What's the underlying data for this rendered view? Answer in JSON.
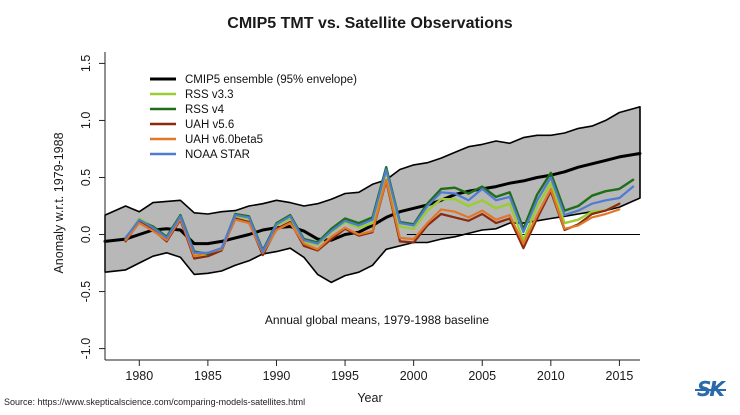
{
  "chart_data": {
    "type": "line",
    "title": "CMIP5 TMT vs. Satellite Observations",
    "xlabel": "Year",
    "ylabel": "Anomaly w.r.t. 1979-1988",
    "xlim": [
      1977.5,
      2016.5
    ],
    "ylim": [
      -1.1,
      1.6
    ],
    "xticks": [
      1980,
      1985,
      1990,
      1995,
      2000,
      2005,
      2010,
      2015
    ],
    "yticks": [
      -1.0,
      -0.5,
      0.0,
      0.5,
      1.0,
      1.5
    ],
    "ytick_labels": [
      "-1.0",
      "-0.5",
      "0.0",
      "0.5",
      "1.0",
      "1.5"
    ],
    "annotation": "Annual global means, 1979-1988 baseline",
    "legend_position": "top-left",
    "envelope": {
      "name": "CMIP5 ensemble (95% envelope)",
      "color": "#b8b8b8",
      "x": [
        1977.5,
        1979,
        1980,
        1981,
        1982,
        1983,
        1984,
        1985,
        1986,
        1987,
        1988,
        1989,
        1990,
        1991,
        1992,
        1993,
        1994,
        1995,
        1996,
        1997,
        1998,
        1999,
        2000,
        2001,
        2002,
        2003,
        2004,
        2005,
        2006,
        2007,
        2008,
        2009,
        2010,
        2011,
        2012,
        2013,
        2014,
        2015,
        2016.5
      ],
      "upper": [
        0.17,
        0.25,
        0.2,
        0.28,
        0.29,
        0.3,
        0.19,
        0.18,
        0.2,
        0.21,
        0.25,
        0.27,
        0.3,
        0.28,
        0.25,
        0.27,
        0.31,
        0.36,
        0.37,
        0.44,
        0.48,
        0.57,
        0.61,
        0.63,
        0.67,
        0.72,
        0.77,
        0.79,
        0.82,
        0.8,
        0.85,
        0.87,
        0.87,
        0.89,
        0.93,
        0.95,
        1.0,
        1.07,
        1.12
      ],
      "lower": [
        -0.33,
        -0.31,
        -0.25,
        -0.19,
        -0.16,
        -0.2,
        -0.35,
        -0.34,
        -0.32,
        -0.27,
        -0.23,
        -0.17,
        -0.15,
        -0.12,
        -0.2,
        -0.35,
        -0.42,
        -0.36,
        -0.33,
        -0.27,
        -0.13,
        -0.1,
        -0.07,
        -0.07,
        -0.04,
        -0.02,
        0.01,
        0.04,
        0.05,
        0.1,
        0.1,
        0.12,
        0.14,
        0.16,
        0.18,
        0.2,
        0.21,
        0.24,
        0.32
      ]
    },
    "series": [
      {
        "name": "CMIP5 ensemble (95% envelope)",
        "color": "#000000",
        "x": [
          1977.5,
          1979,
          1980,
          1981,
          1982,
          1983,
          1984,
          1985,
          1986,
          1987,
          1988,
          1989,
          1990,
          1991,
          1992,
          1993,
          1994,
          1995,
          1996,
          1997,
          1998,
          1999,
          2000,
          2001,
          2002,
          2003,
          2004,
          2005,
          2006,
          2007,
          2008,
          2009,
          2010,
          2011,
          2012,
          2013,
          2014,
          2015,
          2016.5
        ],
        "values": [
          -0.06,
          -0.04,
          0.0,
          0.04,
          0.05,
          0.04,
          -0.08,
          -0.08,
          -0.06,
          -0.03,
          0.0,
          0.04,
          0.06,
          0.07,
          0.03,
          -0.04,
          -0.05,
          0.0,
          0.02,
          0.08,
          0.15,
          0.2,
          0.23,
          0.26,
          0.3,
          0.35,
          0.38,
          0.4,
          0.42,
          0.45,
          0.47,
          0.5,
          0.52,
          0.55,
          0.59,
          0.62,
          0.65,
          0.68,
          0.71
        ]
      },
      {
        "name": "RSS v3.3",
        "color": "#9acd32",
        "x": [
          1979,
          1980,
          1981,
          1982,
          1983,
          1984,
          1985,
          1986,
          1987,
          1988,
          1989,
          1990,
          1991,
          1992,
          1993,
          1994,
          1995,
          1996,
          1997,
          1998,
          1999,
          2000,
          2001,
          2002,
          2003,
          2004,
          2005,
          2006,
          2007,
          2008,
          2009,
          2010,
          2011,
          2012,
          2013,
          2014,
          2015
        ],
        "values": [
          -0.04,
          0.14,
          0.07,
          -0.04,
          0.15,
          -0.18,
          -0.18,
          -0.14,
          0.16,
          0.14,
          -0.16,
          0.08,
          0.14,
          -0.06,
          -0.09,
          0.02,
          0.11,
          0.06,
          0.1,
          0.55,
          0.07,
          0.05,
          0.21,
          0.31,
          0.31,
          0.25,
          0.3,
          0.23,
          0.27,
          -0.05,
          0.25,
          0.45,
          0.1,
          0.13,
          0.2,
          0.21,
          0.27
        ]
      },
      {
        "name": "RSS v4",
        "color": "#1f6e1a",
        "x": [
          1979,
          1980,
          1981,
          1982,
          1983,
          1984,
          1985,
          1986,
          1987,
          1988,
          1989,
          1990,
          1991,
          1992,
          1993,
          1994,
          1995,
          1996,
          1997,
          1998,
          1999,
          2000,
          2001,
          2002,
          2003,
          2004,
          2005,
          2006,
          2007,
          2008,
          2009,
          2010,
          2011,
          2012,
          2013,
          2014,
          2015,
          2016
        ],
        "values": [
          -0.03,
          0.12,
          0.07,
          -0.02,
          0.17,
          -0.15,
          -0.17,
          -0.13,
          0.18,
          0.16,
          -0.14,
          0.1,
          0.17,
          -0.04,
          -0.07,
          0.05,
          0.14,
          0.1,
          0.15,
          0.59,
          0.11,
          0.09,
          0.27,
          0.4,
          0.41,
          0.36,
          0.42,
          0.33,
          0.37,
          0.05,
          0.35,
          0.54,
          0.21,
          0.25,
          0.34,
          0.38,
          0.4,
          0.48
        ]
      },
      {
        "name": "UAH v5.6",
        "color": "#8b2a10",
        "x": [
          1979,
          1980,
          1981,
          1982,
          1983,
          1984,
          1985,
          1986,
          1987,
          1988,
          1989,
          1990,
          1991,
          1992,
          1993,
          1994,
          1995,
          1996,
          1997,
          1998,
          1999,
          2000,
          2001,
          2002,
          2003,
          2004,
          2005,
          2006,
          2007,
          2008,
          2009,
          2010,
          2011,
          2012,
          2013,
          2014,
          2015
        ],
        "values": [
          -0.06,
          0.11,
          0.04,
          -0.06,
          0.13,
          -0.21,
          -0.19,
          -0.14,
          0.14,
          0.11,
          -0.18,
          0.05,
          0.11,
          -0.1,
          -0.14,
          -0.04,
          0.05,
          -0.01,
          0.02,
          0.47,
          -0.06,
          -0.07,
          0.08,
          0.18,
          0.15,
          0.12,
          0.18,
          0.1,
          0.14,
          -0.12,
          0.14,
          0.38,
          0.04,
          0.09,
          0.18,
          0.21,
          0.27
        ]
      },
      {
        "name": "UAH v6.0beta5",
        "color": "#e0782a",
        "x": [
          1979,
          1980,
          1981,
          1982,
          1983,
          1984,
          1985,
          1986,
          1987,
          1988,
          1989,
          1990,
          1991,
          1992,
          1993,
          1994,
          1995,
          1996,
          1997,
          1998,
          1999,
          2000,
          2001,
          2002,
          2003,
          2004,
          2005,
          2006,
          2007,
          2008,
          2009,
          2010,
          2011,
          2012,
          2013,
          2014,
          2015
        ],
        "values": [
          -0.05,
          0.1,
          0.03,
          -0.05,
          0.14,
          -0.19,
          -0.16,
          -0.13,
          0.13,
          0.1,
          -0.16,
          0.04,
          0.1,
          -0.08,
          -0.13,
          -0.02,
          0.06,
          0.0,
          0.03,
          0.48,
          -0.03,
          -0.04,
          0.1,
          0.22,
          0.2,
          0.15,
          0.21,
          0.13,
          0.17,
          -0.08,
          0.17,
          0.4,
          0.05,
          0.08,
          0.15,
          0.18,
          0.22
        ]
      },
      {
        "name": "NOAA STAR",
        "color": "#4f7bd1",
        "x": [
          1979,
          1980,
          1981,
          1982,
          1983,
          1984,
          1985,
          1986,
          1987,
          1988,
          1989,
          1990,
          1991,
          1992,
          1993,
          1994,
          1995,
          1996,
          1997,
          1998,
          1999,
          2000,
          2001,
          2002,
          2003,
          2004,
          2005,
          2006,
          2007,
          2008,
          2009,
          2010,
          2011,
          2012,
          2013,
          2014,
          2015,
          2016
        ],
        "values": [
          -0.03,
          0.13,
          0.06,
          -0.03,
          0.16,
          -0.16,
          -0.16,
          -0.12,
          0.17,
          0.15,
          -0.15,
          0.09,
          0.16,
          -0.05,
          -0.08,
          0.03,
          0.12,
          0.08,
          0.13,
          0.57,
          0.1,
          0.08,
          0.25,
          0.37,
          0.36,
          0.3,
          0.4,
          0.3,
          0.33,
          0.02,
          0.3,
          0.5,
          0.17,
          0.21,
          0.27,
          0.3,
          0.32,
          0.42
        ]
      }
    ]
  },
  "footer": {
    "source": "Source: https://www.skepticalscience.com/comparing-models-satellites.html",
    "logo_text": "SK"
  }
}
